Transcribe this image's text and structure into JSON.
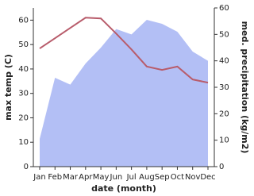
{
  "chart_data": {
    "type": "area-line",
    "x_label": "date (month)",
    "y_label": "max temp (C)",
    "y2_label": "med. precipitation (kg/m2)",
    "categories": [
      "Jan",
      "Feb",
      "Mar",
      "Apr",
      "May",
      "Jun",
      "Jul",
      "Aug",
      "Sep",
      "Oct",
      "Nov",
      "Dec"
    ],
    "series": [
      {
        "kind": "area",
        "axis": "y2",
        "color": "#b3bff5",
        "values": [
          10.5,
          33.6,
          31,
          39,
          45,
          52,
          50,
          55.5,
          54,
          51,
          43.5,
          40
        ]
      },
      {
        "kind": "line",
        "axis": "y",
        "color": "#b85c6b",
        "values": [
          48.4,
          52.6,
          56.8,
          61,
          60.7,
          54.5,
          48,
          41,
          39.6,
          41,
          35.7,
          34.4
        ]
      }
    ],
    "ylim": [
      0,
      65
    ],
    "yticks": [
      0,
      10,
      20,
      30,
      40,
      50,
      60
    ],
    "y2lim": [
      0,
      60
    ],
    "y2ticks": [
      0,
      10,
      20,
      30,
      40,
      50,
      60
    ]
  }
}
